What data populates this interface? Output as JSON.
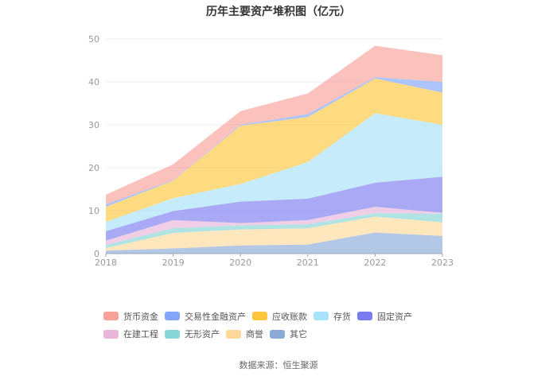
{
  "chart_data": {
    "type": "area",
    "stacked": true,
    "title": "历年主要资产堆积图（亿元）",
    "categories": [
      "2018",
      "2019",
      "2020",
      "2021",
      "2022",
      "2023"
    ],
    "ylim": [
      0,
      50
    ],
    "yticks": [
      "0",
      "10",
      "20",
      "30",
      "40",
      "50"
    ],
    "grid": true,
    "legend_position": "bottom",
    "series": [
      {
        "name": "其它",
        "color": "#8aaad8",
        "values": [
          0.7,
          1.2,
          1.9,
          2.1,
          4.9,
          4.1
        ]
      },
      {
        "name": "商誉",
        "color": "#fed89a",
        "values": [
          0.6,
          3.6,
          3.7,
          3.8,
          3.7,
          3.2
        ]
      },
      {
        "name": "无形资产",
        "color": "#86d6d6",
        "values": [
          0.7,
          1.1,
          1.0,
          0.9,
          0.8,
          2.0
        ]
      },
      {
        "name": "在建工程",
        "color": "#e8b6d8",
        "values": [
          1.0,
          1.9,
          0.5,
          1.0,
          1.5,
          0.2
        ]
      },
      {
        "name": "固定资产",
        "color": "#7b7bf0",
        "values": [
          2.2,
          2.1,
          5.0,
          5.0,
          5.6,
          8.4
        ]
      },
      {
        "name": "存货",
        "color": "#a8e2fb",
        "values": [
          2.2,
          3.0,
          4.1,
          8.5,
          16.2,
          12.1
        ]
      },
      {
        "name": "应收账款",
        "color": "#fec63d",
        "values": [
          3.5,
          4.1,
          13.6,
          10.5,
          8.1,
          7.5
        ]
      },
      {
        "name": "交易性金融资产",
        "color": "#82a6fb",
        "values": [
          0.6,
          0.1,
          0.2,
          0.7,
          0.3,
          2.5
        ]
      },
      {
        "name": "货币资金",
        "color": "#f8a09a",
        "values": [
          2.2,
          3.7,
          3.2,
          4.8,
          7.3,
          6.2
        ]
      }
    ],
    "legend_order": [
      "货币资金",
      "交易性金融资产",
      "应收账款",
      "存货",
      "固定资产",
      "在建工程",
      "无形资产",
      "商誉",
      "其它"
    ]
  },
  "source": "数据来源：恒生聚源"
}
